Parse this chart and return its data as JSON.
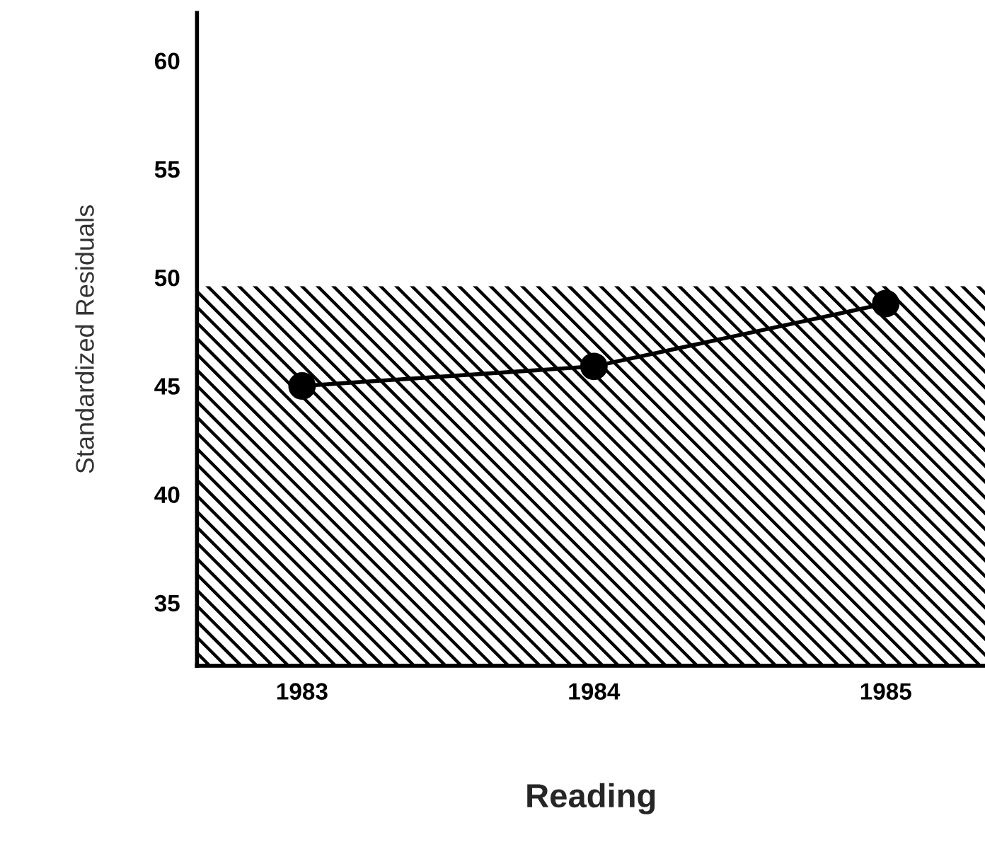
{
  "chart_data": {
    "type": "line",
    "xlabel": "Reading",
    "ylabel": "Standardized Residuals",
    "categories": [
      "1983",
      "1984",
      "1985"
    ],
    "series": [
      {
        "color": "#000000",
        "values": [
          45.0,
          45.9,
          48.8
        ]
      }
    ],
    "ylim": [
      32.1,
      62.2
    ],
    "yticks": [
      35,
      40,
      45,
      50,
      55,
      60
    ],
    "bands": [
      {
        "axis": "y",
        "from": 32.1,
        "to": 49.6,
        "color": "#000000"
      }
    ],
    "marker": "circle",
    "line_style": "solid",
    "grid": false,
    "legend": false
  }
}
